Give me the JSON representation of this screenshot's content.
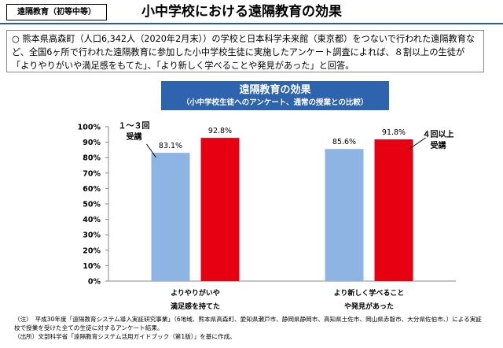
{
  "header": {
    "tag": "遠隔教育（初等中等）",
    "title": "小中学校における遠隔教育の効果"
  },
  "intro": "○ 熊本県高森町（人口6,342人（2020年2月末））の学校と日本科学未来館（東京都）をつないで行われた遠隔教育など、全国6ヶ所で行われた遠隔教育に参加した小中学校生徒に実施したアンケート調査によれば、８割以上の生徒が「よりやりがいや満足感をもてた」、「より新しく学べることや発見があった」と回答。",
  "chart_data": {
    "type": "bar",
    "title": "遠隔教育の効果",
    "subtitle": "（小中学校生徒へのアンケート、通常の授業との比較）",
    "categories": [
      "よりやりがいや\n満足感を持てた",
      "より新しく学べること\nや発見があった"
    ],
    "series": [
      {
        "name": "１～３回\n受講",
        "color": "#8db4e2",
        "values": [
          83.1,
          85.6
        ],
        "value_labels": [
          "83.1%",
          "85.6%"
        ]
      },
      {
        "name": "４回以上\n受講",
        "color": "#e60012",
        "values": [
          92.8,
          91.8
        ],
        "value_labels": [
          "92.8%",
          "91.8%"
        ]
      }
    ],
    "ylim": [
      0,
      100
    ],
    "yticks": [
      {
        "value": 0,
        "label": "0%"
      },
      {
        "value": 10,
        "label": "10%"
      },
      {
        "value": 20,
        "label": "20%"
      },
      {
        "value": 30,
        "label": "30%"
      },
      {
        "value": 40,
        "label": "40%"
      },
      {
        "value": 50,
        "label": "50%"
      },
      {
        "value": 60,
        "label": "60%"
      },
      {
        "value": 70,
        "label": "70%"
      },
      {
        "value": 80,
        "label": "80%"
      },
      {
        "value": 90,
        "label": "90%"
      },
      {
        "value": 100,
        "label": "100%"
      }
    ]
  },
  "notes": [
    "（注）　平成30年度「遠隔教育システム導入実証研究事業」（6地域、熊本県高森町、愛知県瀬戸市、静岡県静岡市、高知県土佐市、岡山県赤磐市、大分県佐伯市、）による実証校で授業を受けた全ての生徒に対するアンケート結果。",
    "（出所）文部科学省「遠隔教育システム活用ガイドブック（第1版）」を基に作成。"
  ]
}
